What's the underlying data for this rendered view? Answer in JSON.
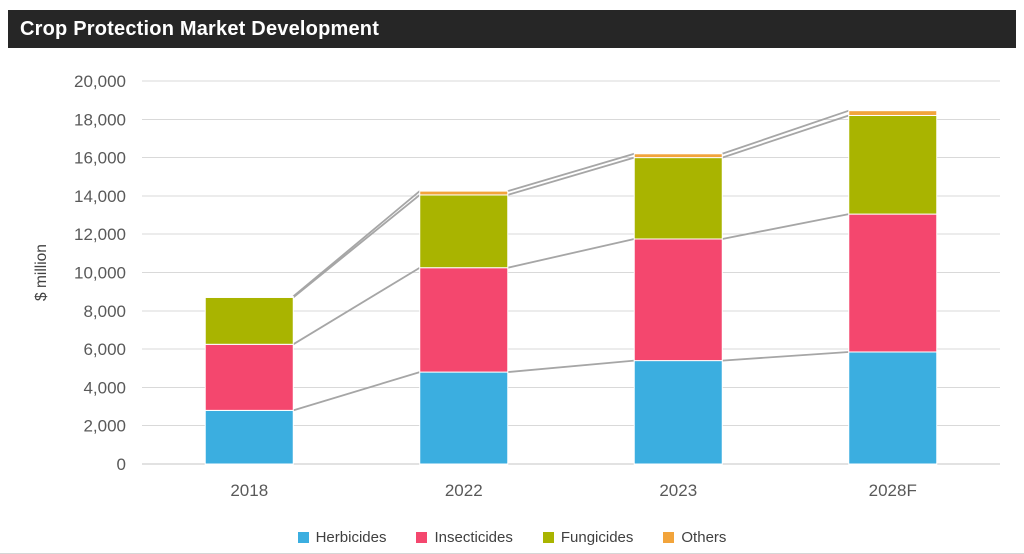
{
  "header": {
    "title": "Crop Protection Market Development"
  },
  "chart_data": {
    "type": "bar",
    "stacked": true,
    "title": "Crop Protection Market Development",
    "categories": [
      "2018",
      "2022",
      "2023",
      "2028F"
    ],
    "series": [
      {
        "name": "Herbicides",
        "color": "#3BAEE0",
        "values": [
          2800,
          4800,
          5400,
          5850
        ]
      },
      {
        "name": "Insecticides",
        "color": "#F4476E",
        "values": [
          3450,
          5450,
          6350,
          7200
        ]
      },
      {
        "name": "Fungicides",
        "color": "#A9B400",
        "values": [
          2450,
          3800,
          4250,
          5150
        ]
      },
      {
        "name": "Others",
        "color": "#F2A43B",
        "values": [
          50,
          200,
          200,
          250
        ]
      }
    ],
    "totals": [
      8750,
      14250,
      16200,
      18450
    ],
    "xlabel": "",
    "ylabel": "$ million",
    "ylim": [
      0,
      20000
    ],
    "ytick_step": 2000,
    "ytick_labels": [
      "0",
      "2,000",
      "4,000",
      "6,000",
      "8,000",
      "10,000",
      "12,000",
      "14,000",
      "16,000",
      "18,000",
      "20,000"
    ],
    "grid": true,
    "legend_position": "bottom",
    "connector_lines": true
  },
  "colors": {
    "title_bar_bg": "#262626",
    "title_text": "#ffffff",
    "gridline": "#D9D9D9",
    "axis_line": "#C6C6C6",
    "tick_label": "#595959",
    "axis_title": "#404040",
    "legend_text": "#404040",
    "connector_line": "#A6A6A6",
    "background": "#FFFFFF"
  }
}
